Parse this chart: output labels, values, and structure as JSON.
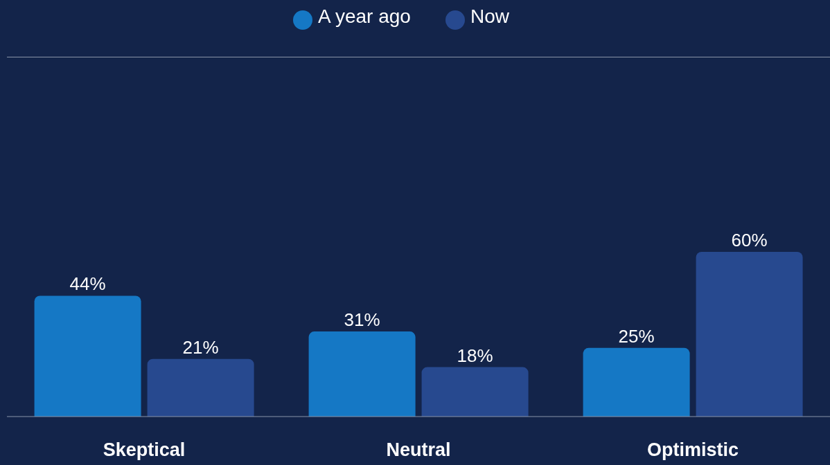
{
  "chart_data": {
    "type": "bar",
    "categories": [
      "Skeptical",
      "Neutral",
      "Optimistic"
    ],
    "series": [
      {
        "name": "A year ago",
        "color": "#1578c5",
        "values": [
          44,
          31,
          25
        ],
        "value_labels": [
          "44%",
          "31%",
          "25%"
        ]
      },
      {
        "name": "Now",
        "color": "#27498f",
        "values": [
          21,
          18,
          60
        ],
        "value_labels": [
          "21%",
          "18%",
          "60%"
        ]
      }
    ],
    "tick_labels": "x",
    "legend": "top"
  }
}
